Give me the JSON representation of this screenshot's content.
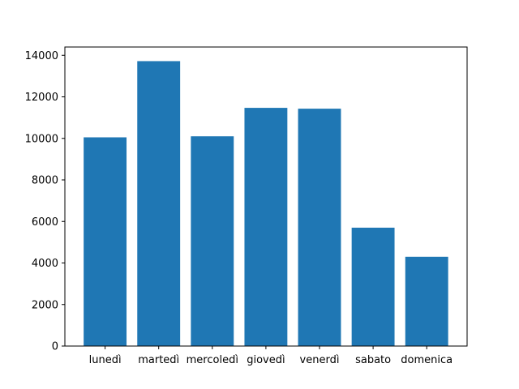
{
  "chart_data": {
    "type": "bar",
    "categories": [
      "lunedì",
      "martedì",
      "mercoledì",
      "giovedì",
      "venerdì",
      "sabato",
      "domenica"
    ],
    "values": [
      10050,
      13720,
      10100,
      11470,
      11430,
      5700,
      4300
    ],
    "yticks": [
      0,
      2000,
      4000,
      6000,
      8000,
      10000,
      12000,
      14000
    ],
    "ylim": [
      0,
      14400
    ],
    "grid": false,
    "bar_color": "#1f77b4"
  }
}
